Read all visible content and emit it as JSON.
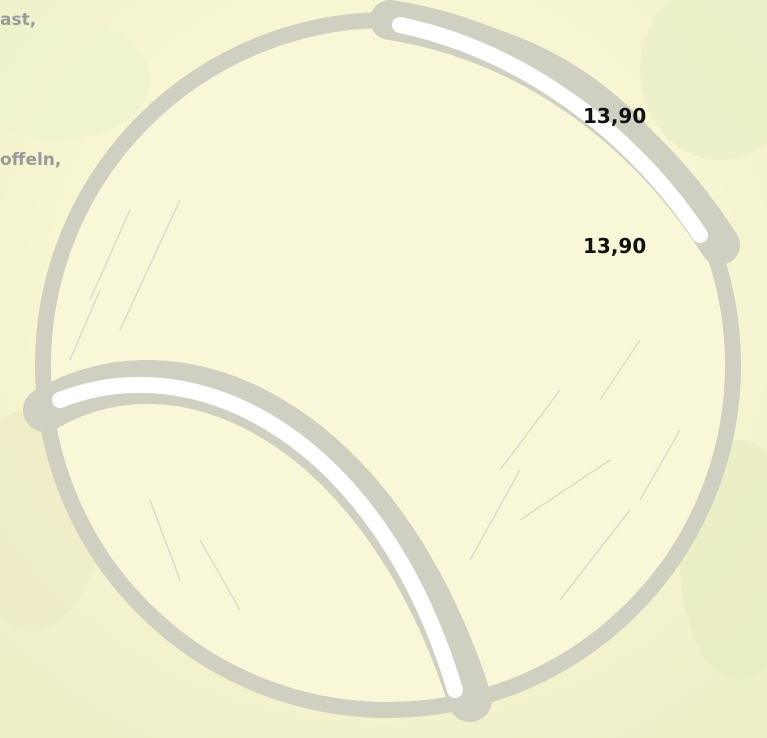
{
  "menu": {
    "items": [
      {
        "description": "ast,",
        "price": "13,90"
      },
      {
        "description": "offeln,",
        "price": "13,90"
      }
    ]
  }
}
